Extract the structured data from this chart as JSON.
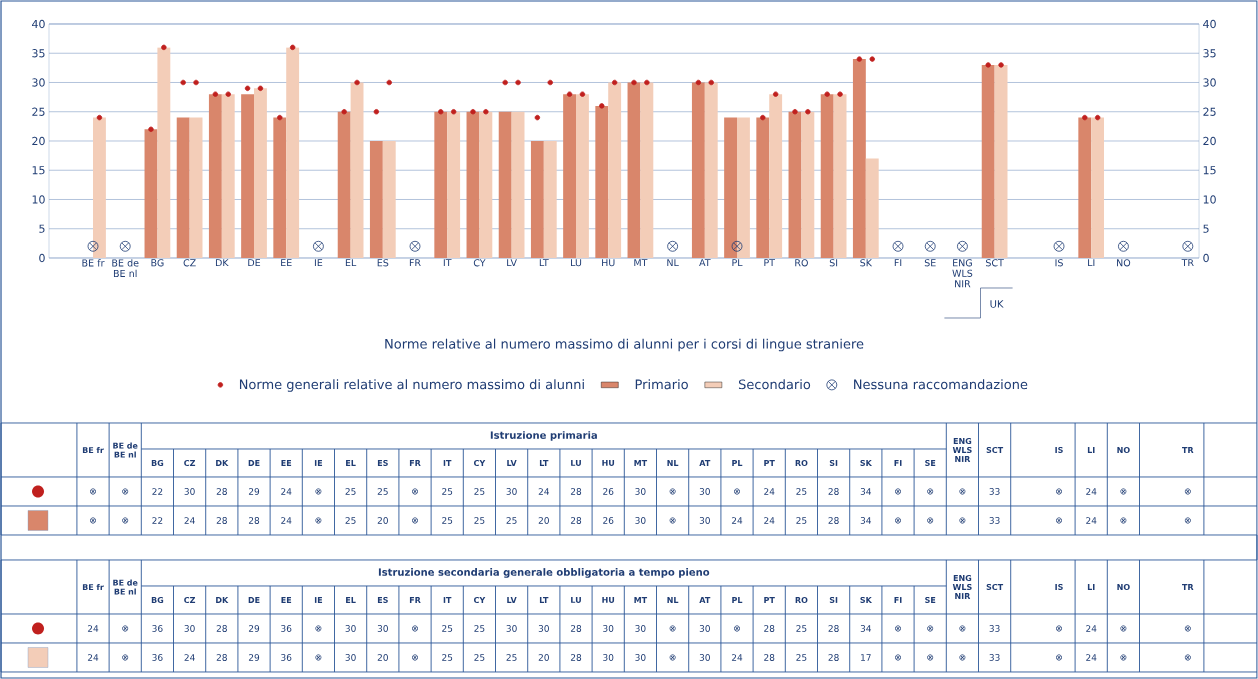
{
  "chart_data": {
    "type": "bar",
    "categories": [
      "BE fr",
      "BE de BE nl",
      "BG",
      "CZ",
      "DK",
      "DE",
      "EE",
      "IE",
      "EL",
      "ES",
      "FR",
      "IT",
      "CY",
      "LV",
      "LT",
      "LU",
      "HU",
      "MT",
      "NL",
      "AT",
      "PL",
      "PT",
      "RO",
      "SI",
      "SK",
      "FI",
      "SE",
      "ENG WLS NIR",
      "SCT",
      null,
      "IS",
      "LI",
      "NO",
      null,
      "TR"
    ],
    "series": [
      {
        "name": "Norme generali relative al numero massimo di alunni",
        "type": "scatter",
        "marker": "circle",
        "color": "#c0201e",
        "values": [
          null,
          null,
          22,
          30,
          28,
          29,
          24,
          null,
          25,
          25,
          null,
          25,
          25,
          30,
          24,
          28,
          26,
          30,
          null,
          30,
          null,
          24,
          25,
          28,
          34,
          null,
          null,
          null,
          33,
          null,
          null,
          24,
          null,
          null,
          null
        ],
        "value_labels": [
          "⊗",
          "⊗",
          "22",
          "30",
          "28",
          "29",
          "24",
          "⊗",
          "25",
          "25",
          "⊗",
          "25",
          "25",
          "30",
          "24",
          "28",
          "26",
          "30",
          "⊗",
          "30",
          "⊗",
          "24",
          "25",
          "28",
          "34",
          "⊗",
          "⊗",
          "⊗",
          "33",
          null,
          "⊗",
          "24",
          "⊗",
          null,
          "⊗"
        ]
      },
      {
        "name": "Primario",
        "color": "#d9866b",
        "values": [
          null,
          null,
          22,
          24,
          28,
          28,
          24,
          null,
          25,
          20,
          null,
          25,
          25,
          25,
          20,
          28,
          26,
          30,
          null,
          30,
          24,
          24,
          25,
          28,
          34,
          null,
          null,
          null,
          33,
          null,
          null,
          24,
          null,
          null,
          null
        ],
        "value_labels": [
          "⊗",
          "⊗",
          "22",
          "24",
          "28",
          "28",
          "24",
          "⊗",
          "25",
          "20",
          "⊗",
          "25",
          "25",
          "25",
          "20",
          "28",
          "26",
          "30",
          "⊗",
          "30",
          "24",
          "24",
          "25",
          "28",
          "34",
          "⊗",
          "⊗",
          "⊗",
          "33",
          null,
          "⊗",
          "24",
          "⊗",
          null,
          "⊗"
        ]
      },
      {
        "type": "scatter",
        "marker": "circle",
        "color": "#c0201e",
        "values": [
          24,
          null,
          36,
          30,
          28,
          29,
          36,
          null,
          30,
          30,
          null,
          25,
          25,
          30,
          30,
          28,
          30,
          30,
          null,
          30,
          null,
          28,
          25,
          28,
          34,
          null,
          null,
          null,
          33,
          null,
          null,
          24,
          null,
          null,
          null
        ],
        "value_labels": [
          "24",
          "⊗",
          "36",
          "30",
          "28",
          "29",
          "36",
          "⊗",
          "30",
          "30",
          "⊗",
          "25",
          "25",
          "30",
          "30",
          "28",
          "30",
          "30",
          "⊗",
          "30",
          "⊗",
          "28",
          "25",
          "28",
          "34",
          "⊗",
          "⊗",
          "⊗",
          "33",
          null,
          "⊗",
          "24",
          "⊗",
          null,
          "⊗"
        ]
      },
      {
        "name": "Secondario",
        "color": "#f3cdb8",
        "values": [
          24,
          null,
          36,
          24,
          28,
          29,
          36,
          null,
          30,
          20,
          null,
          25,
          25,
          25,
          20,
          28,
          30,
          30,
          null,
          30,
          24,
          28,
          25,
          28,
          17,
          null,
          null,
          null,
          33,
          null,
          null,
          24,
          null,
          null,
          null
        ],
        "value_labels": [
          "24",
          "⊗",
          "36",
          "24",
          "28",
          "29",
          "36",
          "⊗",
          "30",
          "20",
          "⊗",
          "25",
          "25",
          "25",
          "20",
          "28",
          "30",
          "30",
          "⊗",
          "30",
          "24",
          "28",
          "25",
          "28",
          "17",
          "⊗",
          "⊗",
          "⊗",
          "33",
          null,
          "⊗",
          "24",
          "⊗",
          null,
          "⊗"
        ]
      },
      {
        "name": "Nessuna raccomandazione",
        "type": "scatter",
        "marker": "cross",
        "color": "#1f3c73",
        "values": [
          2,
          2,
          null,
          null,
          null,
          null,
          null,
          2,
          null,
          null,
          2,
          null,
          null,
          null,
          null,
          null,
          null,
          null,
          2,
          null,
          2,
          null,
          null,
          null,
          null,
          2,
          2,
          2,
          null,
          null,
          2,
          null,
          2,
          null,
          2
        ]
      }
    ],
    "ylim": [
      0,
      40
    ],
    "yticks": [
      0,
      5,
      10,
      15,
      20,
      25,
      30,
      35,
      40
    ],
    "y2lim": [
      0,
      40
    ],
    "y2ticks": [
      0,
      5,
      10,
      15,
      20,
      25,
      30,
      35,
      40
    ],
    "grid": "y",
    "legend": "bottom",
    "legend_title": "Norme relative al numero massimo di alunni per i corsi di lingue straniere",
    "annotations": [
      "UK",
      "Istruzione primaria",
      "Istruzione secondaria generale obbligatoria a tempo pieno"
    ]
  }
}
